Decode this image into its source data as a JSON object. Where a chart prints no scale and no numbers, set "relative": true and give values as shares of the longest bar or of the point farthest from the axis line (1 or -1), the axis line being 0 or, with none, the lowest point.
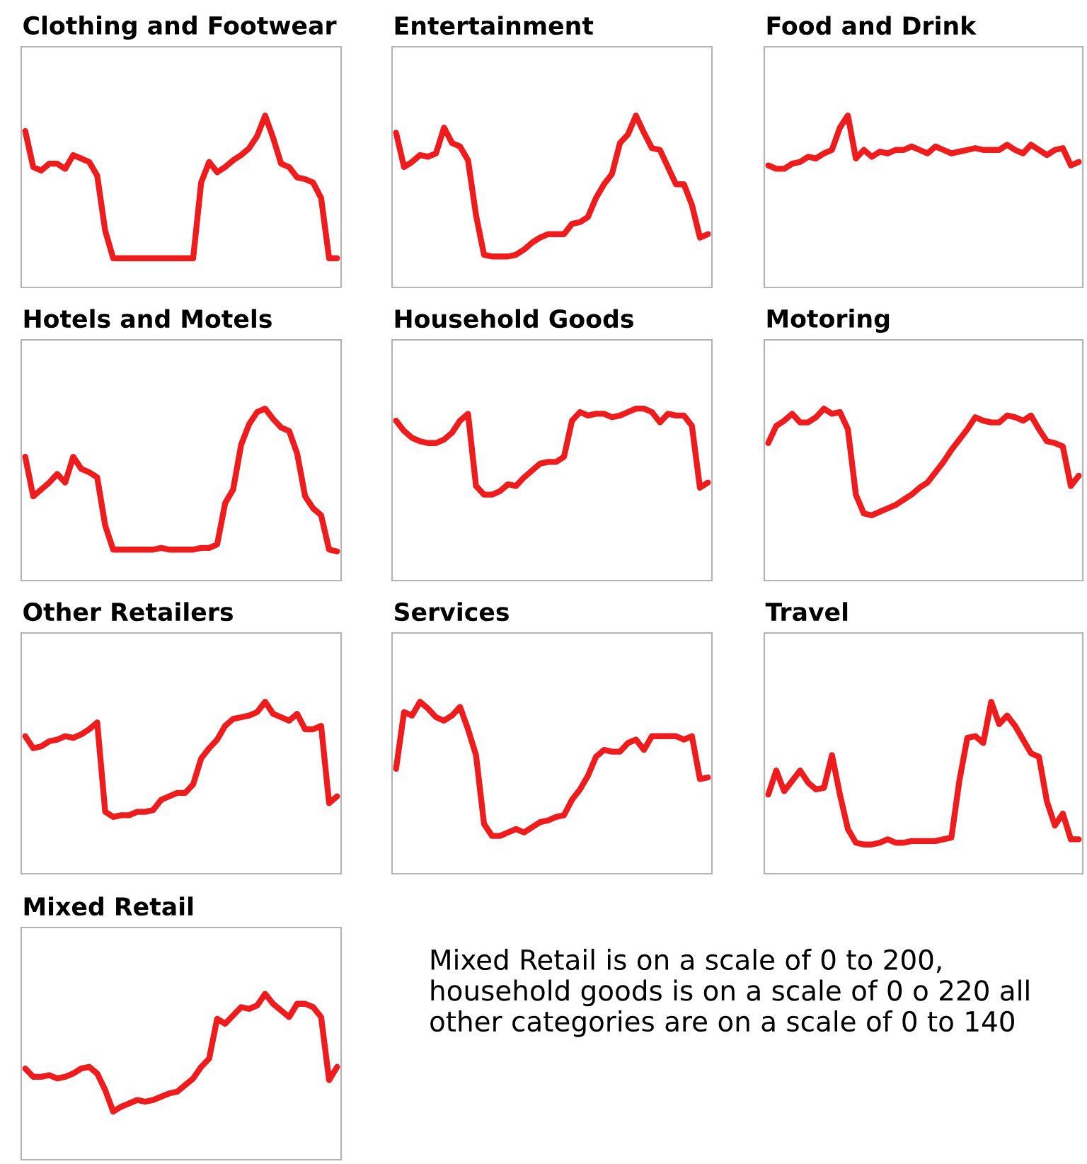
{
  "chart_data": [
    {
      "type": "line",
      "title": "Clothing and Footwear",
      "relative": true,
      "categories": [
        null,
        null,
        null,
        null,
        null,
        null,
        null,
        null,
        null,
        null,
        null,
        null,
        null,
        null,
        null,
        null,
        null,
        null,
        null,
        null,
        null,
        null,
        null,
        null,
        null,
        null,
        null,
        null,
        null,
        null,
        null,
        null,
        null,
        null,
        null,
        null,
        null,
        null,
        null,
        null
      ],
      "series": [
        {
          "color": "#ee1c1c",
          "values": [
            0.91,
            0.7,
            0.68,
            0.72,
            0.72,
            0.69,
            0.77,
            0.75,
            0.73,
            0.65,
            0.33,
            0.17,
            0.17,
            0.17,
            0.17,
            0.17,
            0.17,
            0.17,
            0.17,
            0.17,
            0.17,
            0.17,
            0.61,
            0.73,
            0.67,
            0.7,
            0.74,
            0.77,
            0.81,
            0.88,
            1.0,
            0.87,
            0.72,
            0.7,
            0.64,
            0.63,
            0.61,
            0.52,
            0.17,
            0.17
          ]
        }
      ]
    },
    {
      "type": "line",
      "title": "Entertainment",
      "relative": true,
      "categories": [
        null,
        null,
        null,
        null,
        null,
        null,
        null,
        null,
        null,
        null,
        null,
        null,
        null,
        null,
        null,
        null,
        null,
        null,
        null,
        null,
        null,
        null,
        null,
        null,
        null,
        null,
        null,
        null,
        null,
        null,
        null,
        null,
        null,
        null,
        null,
        null,
        null,
        null,
        null,
        null
      ],
      "series": [
        {
          "color": "#ee1c1c",
          "values": [
            0.9,
            0.7,
            0.73,
            0.77,
            0.76,
            0.78,
            0.93,
            0.84,
            0.82,
            0.74,
            0.42,
            0.19,
            0.18,
            0.18,
            0.18,
            0.19,
            0.22,
            0.26,
            0.29,
            0.31,
            0.31,
            0.31,
            0.37,
            0.38,
            0.41,
            0.52,
            0.6,
            0.66,
            0.84,
            0.89,
            1.0,
            0.9,
            0.81,
            0.8,
            0.7,
            0.6,
            0.6,
            0.48,
            0.29,
            0.31
          ]
        }
      ]
    },
    {
      "type": "line",
      "title": "Food and Drink",
      "relative": true,
      "categories": [
        null,
        null,
        null,
        null,
        null,
        null,
        null,
        null,
        null,
        null,
        null,
        null,
        null,
        null,
        null,
        null,
        null,
        null,
        null,
        null,
        null,
        null,
        null,
        null,
        null,
        null,
        null,
        null,
        null,
        null,
        null,
        null,
        null,
        null,
        null,
        null,
        null,
        null,
        null,
        null
      ],
      "series": [
        {
          "color": "#ee1c1c",
          "values": [
            0.71,
            0.69,
            0.69,
            0.72,
            0.73,
            0.76,
            0.75,
            0.78,
            0.8,
            0.93,
            1.0,
            0.75,
            0.8,
            0.76,
            0.79,
            0.78,
            0.8,
            0.8,
            0.82,
            0.8,
            0.78,
            0.82,
            0.8,
            0.78,
            0.79,
            0.8,
            0.81,
            0.8,
            0.8,
            0.8,
            0.83,
            0.8,
            0.78,
            0.83,
            0.8,
            0.77,
            0.8,
            0.81,
            0.71,
            0.73
          ]
        }
      ]
    },
    {
      "type": "line",
      "title": "Hotels and Motels",
      "relative": true,
      "categories": [
        null,
        null,
        null,
        null,
        null,
        null,
        null,
        null,
        null,
        null,
        null,
        null,
        null,
        null,
        null,
        null,
        null,
        null,
        null,
        null,
        null,
        null,
        null,
        null,
        null,
        null,
        null,
        null,
        null,
        null,
        null,
        null,
        null,
        null,
        null,
        null,
        null,
        null,
        null,
        null
      ],
      "series": [
        {
          "color": "#ee1c1c",
          "values": [
            0.72,
            0.49,
            0.53,
            0.57,
            0.62,
            0.57,
            0.72,
            0.65,
            0.63,
            0.6,
            0.32,
            0.18,
            0.18,
            0.18,
            0.18,
            0.18,
            0.18,
            0.19,
            0.18,
            0.18,
            0.18,
            0.18,
            0.19,
            0.19,
            0.21,
            0.45,
            0.53,
            0.79,
            0.91,
            0.98,
            1.0,
            0.94,
            0.89,
            0.87,
            0.74,
            0.49,
            0.42,
            0.38,
            0.18,
            0.17
          ]
        }
      ]
    },
    {
      "type": "line",
      "title": "Household Goods",
      "relative": true,
      "categories": [
        null,
        null,
        null,
        null,
        null,
        null,
        null,
        null,
        null,
        null,
        null,
        null,
        null,
        null,
        null,
        null,
        null,
        null,
        null,
        null,
        null,
        null,
        null,
        null,
        null,
        null,
        null,
        null,
        null,
        null,
        null,
        null,
        null,
        null,
        null,
        null,
        null,
        null,
        null,
        null
      ],
      "series": [
        {
          "color": "#ee1c1c",
          "values": [
            0.93,
            0.87,
            0.83,
            0.81,
            0.8,
            0.8,
            0.82,
            0.86,
            0.93,
            0.97,
            0.55,
            0.5,
            0.5,
            0.52,
            0.56,
            0.55,
            0.6,
            0.64,
            0.68,
            0.69,
            0.69,
            0.72,
            0.93,
            0.98,
            0.96,
            0.97,
            0.97,
            0.95,
            0.96,
            0.98,
            1.0,
            1.0,
            0.98,
            0.92,
            0.97,
            0.96,
            0.96,
            0.9,
            0.54,
            0.57
          ]
        }
      ]
    },
    {
      "type": "line",
      "title": "Motoring",
      "relative": true,
      "categories": [
        null,
        null,
        null,
        null,
        null,
        null,
        null,
        null,
        null,
        null,
        null,
        null,
        null,
        null,
        null,
        null,
        null,
        null,
        null,
        null,
        null,
        null,
        null,
        null,
        null,
        null,
        null,
        null,
        null,
        null,
        null,
        null,
        null,
        null,
        null,
        null,
        null,
        null,
        null,
        null
      ],
      "series": [
        {
          "color": "#ee1c1c",
          "values": [
            0.8,
            0.9,
            0.93,
            0.97,
            0.92,
            0.92,
            0.95,
            1.0,
            0.97,
            0.98,
            0.88,
            0.5,
            0.39,
            0.38,
            0.4,
            0.42,
            0.44,
            0.47,
            0.5,
            0.54,
            0.57,
            0.63,
            0.69,
            0.76,
            0.82,
            0.88,
            0.95,
            0.93,
            0.92,
            0.92,
            0.96,
            0.95,
            0.93,
            0.96,
            0.88,
            0.81,
            0.8,
            0.78,
            0.55,
            0.61
          ]
        }
      ]
    },
    {
      "type": "line",
      "title": "Other Retailers",
      "relative": true,
      "categories": [
        null,
        null,
        null,
        null,
        null,
        null,
        null,
        null,
        null,
        null,
        null,
        null,
        null,
        null,
        null,
        null,
        null,
        null,
        null,
        null,
        null,
        null,
        null,
        null,
        null,
        null,
        null,
        null,
        null,
        null,
        null,
        null,
        null,
        null,
        null,
        null,
        null,
        null,
        null,
        null
      ],
      "series": [
        {
          "color": "#ee1c1c",
          "values": [
            0.8,
            0.73,
            0.74,
            0.77,
            0.78,
            0.8,
            0.79,
            0.81,
            0.84,
            0.88,
            0.36,
            0.33,
            0.34,
            0.34,
            0.36,
            0.36,
            0.37,
            0.43,
            0.45,
            0.47,
            0.47,
            0.52,
            0.67,
            0.73,
            0.78,
            0.86,
            0.9,
            0.91,
            0.92,
            0.94,
            1.0,
            0.93,
            0.91,
            0.89,
            0.93,
            0.84,
            0.84,
            0.86,
            0.41,
            0.45
          ]
        }
      ]
    },
    {
      "type": "line",
      "title": "Services",
      "relative": true,
      "categories": [
        null,
        null,
        null,
        null,
        null,
        null,
        null,
        null,
        null,
        null,
        null,
        null,
        null,
        null,
        null,
        null,
        null,
        null,
        null,
        null,
        null,
        null,
        null,
        null,
        null,
        null,
        null,
        null,
        null,
        null,
        null,
        null,
        null,
        null,
        null,
        null,
        null,
        null,
        null,
        null
      ],
      "series": [
        {
          "color": "#ee1c1c",
          "values": [
            0.61,
            0.94,
            0.92,
            1.0,
            0.96,
            0.91,
            0.89,
            0.92,
            0.97,
            0.84,
            0.69,
            0.29,
            0.22,
            0.22,
            0.24,
            0.26,
            0.24,
            0.27,
            0.3,
            0.31,
            0.33,
            0.34,
            0.43,
            0.49,
            0.57,
            0.68,
            0.72,
            0.71,
            0.71,
            0.76,
            0.78,
            0.72,
            0.8,
            0.8,
            0.8,
            0.8,
            0.78,
            0.8,
            0.55,
            0.56
          ]
        }
      ]
    },
    {
      "type": "line",
      "title": "Travel",
      "relative": true,
      "categories": [
        null,
        null,
        null,
        null,
        null,
        null,
        null,
        null,
        null,
        null,
        null,
        null,
        null,
        null,
        null,
        null,
        null,
        null,
        null,
        null,
        null,
        null,
        null,
        null,
        null,
        null,
        null,
        null,
        null,
        null,
        null,
        null,
        null,
        null,
        null,
        null,
        null,
        null,
        null,
        null
      ],
      "series": [
        {
          "color": "#ee1c1c",
          "values": [
            0.46,
            0.6,
            0.48,
            0.54,
            0.6,
            0.53,
            0.49,
            0.5,
            0.69,
            0.46,
            0.26,
            0.18,
            0.17,
            0.17,
            0.18,
            0.2,
            0.18,
            0.18,
            0.19,
            0.19,
            0.19,
            0.19,
            0.2,
            0.21,
            0.54,
            0.79,
            0.8,
            0.76,
            1.0,
            0.87,
            0.92,
            0.86,
            0.78,
            0.7,
            0.68,
            0.42,
            0.28,
            0.35,
            0.2,
            0.2
          ]
        }
      ]
    },
    {
      "type": "line",
      "title": "Mixed Retail",
      "relative": true,
      "categories": [
        null,
        null,
        null,
        null,
        null,
        null,
        null,
        null,
        null,
        null,
        null,
        null,
        null,
        null,
        null,
        null,
        null,
        null,
        null,
        null,
        null,
        null,
        null,
        null,
        null,
        null,
        null,
        null,
        null,
        null,
        null,
        null,
        null,
        null,
        null,
        null,
        null,
        null,
        null,
        null
      ],
      "series": [
        {
          "color": "#ee1c1c",
          "values": [
            0.55,
            0.5,
            0.5,
            0.51,
            0.49,
            0.5,
            0.52,
            0.55,
            0.56,
            0.52,
            0.42,
            0.29,
            0.32,
            0.34,
            0.36,
            0.35,
            0.36,
            0.38,
            0.4,
            0.41,
            0.45,
            0.49,
            0.56,
            0.61,
            0.85,
            0.82,
            0.87,
            0.92,
            0.91,
            0.93,
            1.0,
            0.94,
            0.9,
            0.86,
            0.94,
            0.94,
            0.92,
            0.86,
            0.48,
            0.56
          ]
        }
      ]
    },
    {
      "type": "other",
      "annotations": [
        "Mixed Retail is on a scale of 0 to 200, household goods is on a scale of 0 o 220 all other categories are on a scale of 0 to 140"
      ]
    }
  ]
}
